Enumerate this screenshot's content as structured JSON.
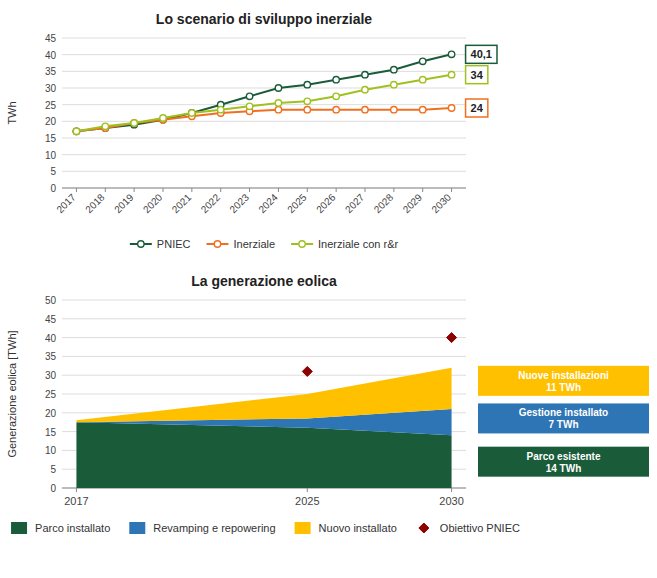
{
  "chart_data": [
    {
      "type": "line",
      "title": "Lo scenario di sviluppo inerziale",
      "y_label": "TWh",
      "x": [
        2017,
        2018,
        2019,
        2020,
        2021,
        2022,
        2023,
        2024,
        2025,
        2026,
        2027,
        2028,
        2029,
        2030
      ],
      "series": [
        {
          "name": "PNIEC",
          "color": "#1a5c3a",
          "marker": "circle",
          "values": [
            17.0,
            18.0,
            19.0,
            20.5,
            22.5,
            25.0,
            27.5,
            30.0,
            31.0,
            32.5,
            34.0,
            35.5,
            38.0,
            40.1
          ]
        },
        {
          "name": "Inerziale",
          "color": "#f07020",
          "marker": "circle",
          "values": [
            17.0,
            18.0,
            19.5,
            20.5,
            21.5,
            22.5,
            23.0,
            23.5,
            23.5,
            23.5,
            23.5,
            23.5,
            23.5,
            24.0
          ]
        },
        {
          "name": "Inerziale con r&r",
          "color": "#a0c020",
          "marker": "circle",
          "values": [
            17.0,
            18.5,
            19.5,
            21.0,
            22.5,
            23.5,
            24.5,
            25.5,
            26.0,
            27.5,
            29.5,
            31.0,
            32.5,
            34.0
          ]
        }
      ],
      "xlim": [
        2016.5,
        2030.5
      ],
      "xticks": [
        2017,
        2018,
        2019,
        2020,
        2021,
        2022,
        2023,
        2024,
        2025,
        2026,
        2027,
        2028,
        2029,
        2030
      ],
      "ylim": [
        0,
        45
      ],
      "yticks": [
        0,
        5,
        10,
        15,
        20,
        25,
        30,
        35,
        40,
        45
      ],
      "grid": true,
      "legend": "bottom",
      "annotations": [
        {
          "text": "40,1",
          "x": 2030,
          "y": 40.1,
          "color": "#1a5c3a"
        },
        {
          "text": "34",
          "x": 2030,
          "y": 34.0,
          "color": "#a0c020"
        },
        {
          "text": "24",
          "x": 2030,
          "y": 24.0,
          "color": "#f07020"
        }
      ]
    },
    {
      "type": "area",
      "title": "La generazione eolica",
      "y_label": "Generazione eolica [TWh]",
      "stacked": true,
      "x": [
        2017,
        2025,
        2030
      ],
      "series": [
        {
          "name": "Parco installato",
          "color": "#1a5c3a",
          "values": [
            17.5,
            16.0,
            14.0
          ]
        },
        {
          "name": "Revamping e repowering",
          "color": "#2e75b6",
          "values": [
            0.0,
            2.5,
            7.0
          ]
        },
        {
          "name": "Nuovo installato",
          "color": "#ffc000",
          "values": [
            0.5,
            6.5,
            11.0
          ]
        },
        {
          "name": "Obiettivo PNIEC",
          "color": "#8b0000",
          "type": "scatter",
          "marker": "diamond",
          "values": [
            null,
            31.0,
            40.0
          ]
        }
      ],
      "xlim": [
        2016.5,
        2030.5
      ],
      "xticks": [
        2017,
        2025,
        2030
      ],
      "ylim": [
        0,
        50
      ],
      "yticks": [
        0,
        5,
        10,
        15,
        20,
        25,
        30,
        35,
        40,
        45,
        50
      ],
      "grid": true,
      "legend": "bottom",
      "annotations": [
        {
          "text": "Nuove installazioni\n11 TWh",
          "y": 28.5,
          "color": "#ffc000"
        },
        {
          "text": "Gestione installato\n7 TWh",
          "y": 18.5,
          "color": "#2e75b6"
        },
        {
          "text": "Parco esistente\n14 TWh",
          "y": 7.0,
          "color": "#1a5c3a"
        }
      ]
    }
  ]
}
